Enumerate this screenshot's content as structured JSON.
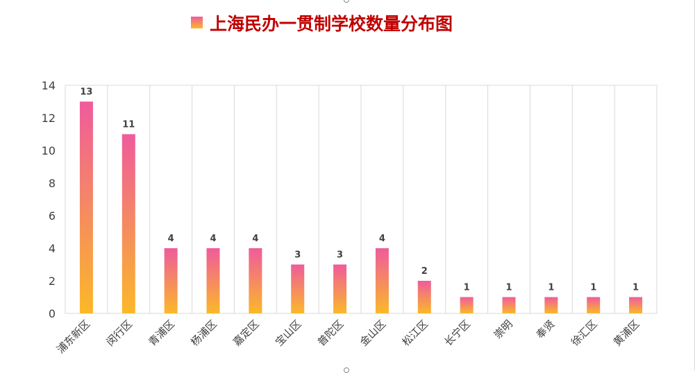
{
  "chart_data": {
    "type": "bar",
    "title": "上海民办一贯制学校数量分布图",
    "categories": [
      "浦东新区",
      "闵行区",
      "青浦区",
      "杨浦区",
      "嘉定区",
      "宝山区",
      "普陀区",
      "金山区",
      "松江区",
      "长宁区",
      "崇明",
      "奉贤",
      "徐汇区",
      "黄浦区"
    ],
    "values": [
      13,
      11,
      4,
      4,
      4,
      3,
      3,
      4,
      2,
      1,
      1,
      1,
      1,
      1
    ],
    "yticks": [
      "0",
      "2",
      "4",
      "6",
      "8",
      "10",
      "12",
      "14"
    ],
    "ylim": [
      0,
      14
    ],
    "grid": "vertical",
    "legend": "top-center",
    "colors": {
      "gradient_top": "#EF5B9C",
      "gradient_bottom": "#FBB829",
      "title": "#C00000",
      "axis_text": "#404040",
      "grid": "#D9D9D9"
    }
  }
}
